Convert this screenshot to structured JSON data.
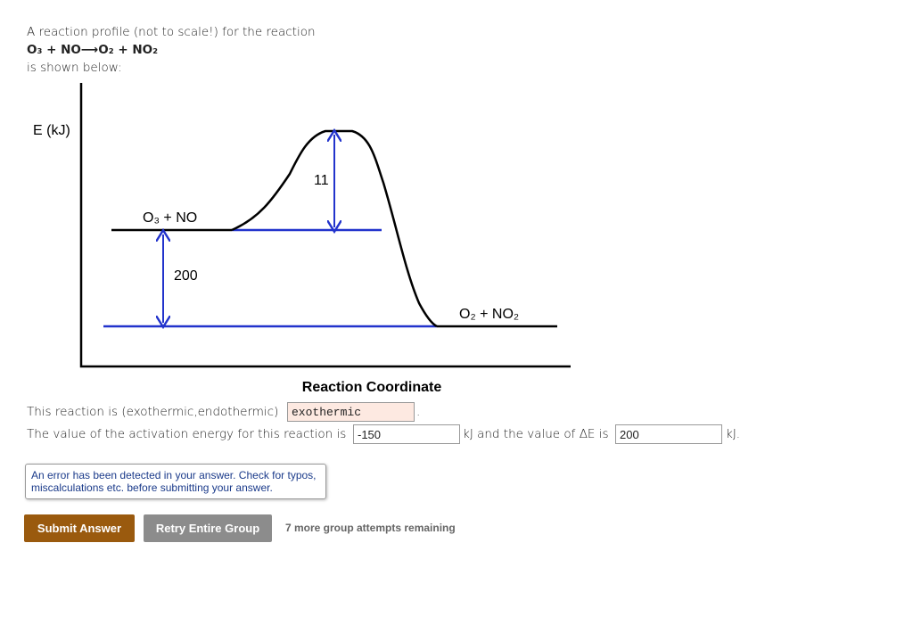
{
  "intro": {
    "line1": "A reaction profile (not to scale!) for the reaction",
    "equation": "O₃ + NO⟶O₂ + NO₂",
    "line3": "is shown below:"
  },
  "diagram": {
    "y_label": "E (kJ)",
    "reactants": "O₃ + NO",
    "activation_label": "11",
    "difference_label": "200",
    "products": "O₂ + NO₂",
    "x_label": "Reaction Coordinate"
  },
  "question1": {
    "prompt": "This reaction is (exothermic,endothermic)",
    "answer": "exothermic",
    "end": "."
  },
  "question2": {
    "prompt": "The value of the activation energy for this reaction is",
    "answer1": "-150",
    "middle": "kJ and the value of ΔE is",
    "answer2": "200",
    "end": "kJ."
  },
  "error_message": "An error has been detected in your answer. Check for typos, miscalculations etc. before submitting your answer.",
  "buttons": {
    "submit": "Submit Answer",
    "retry": "Retry Entire Group"
  },
  "attempts": "7 more group attempts remaining"
}
